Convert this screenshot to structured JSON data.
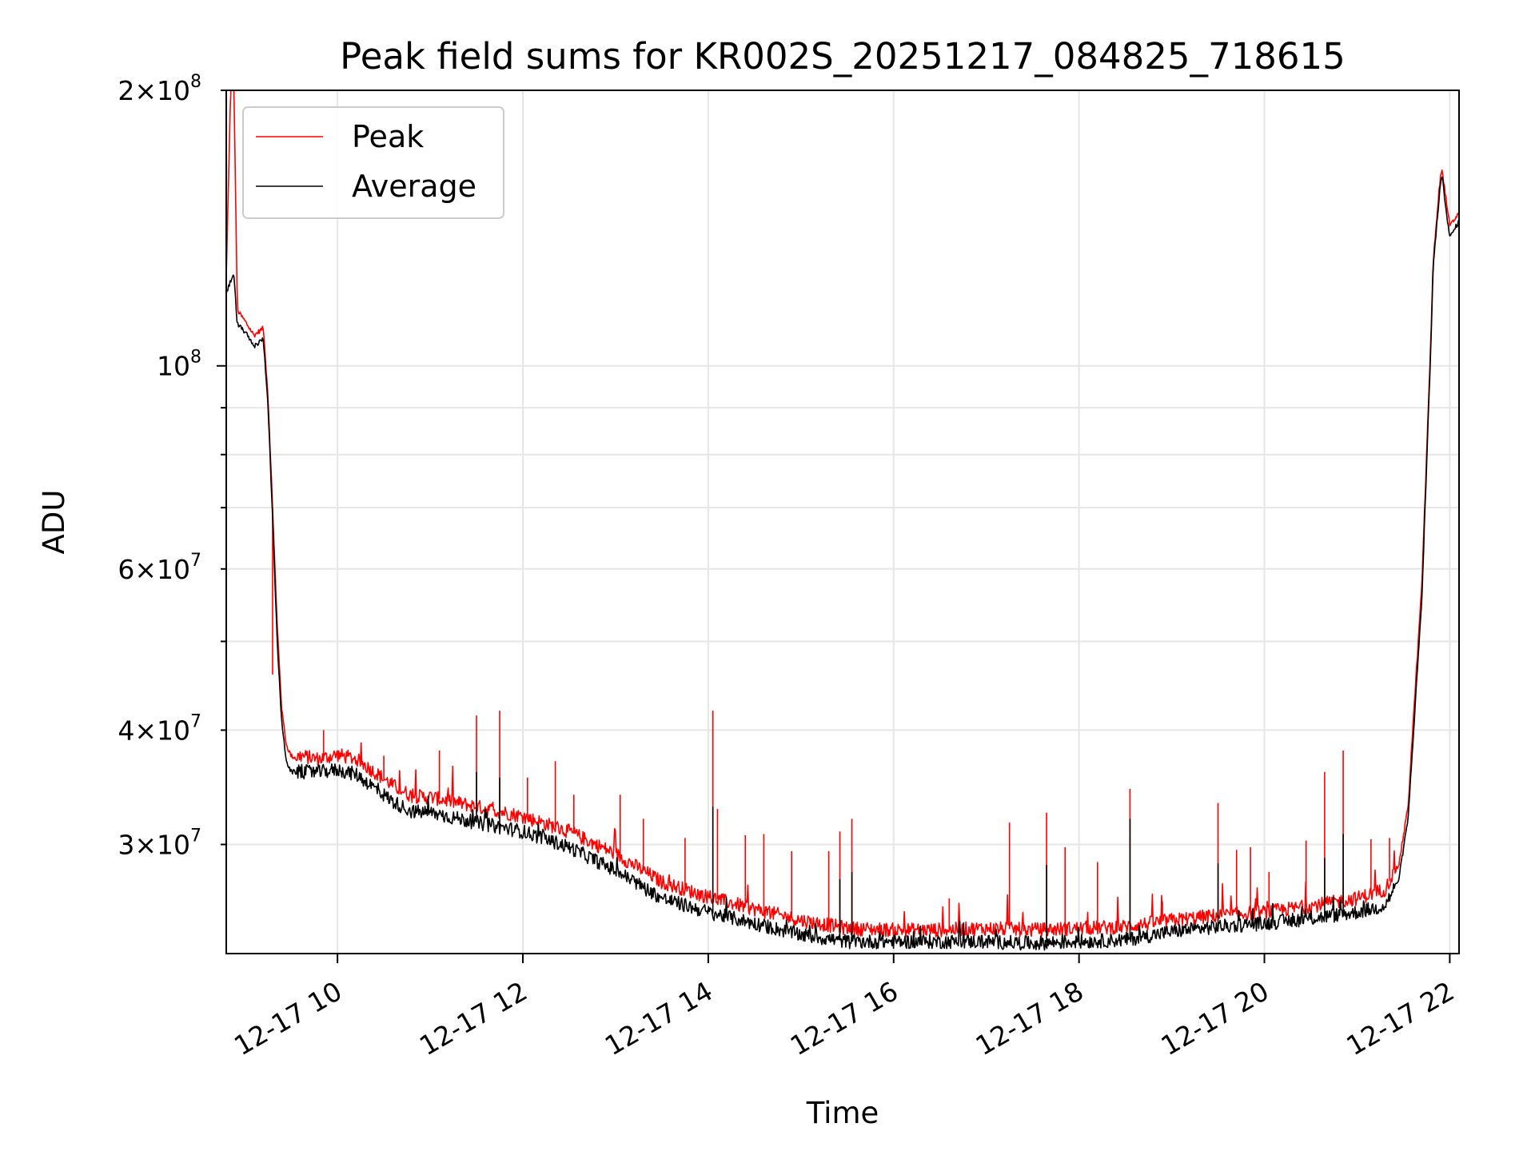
{
  "chart_data": {
    "type": "line",
    "title": "Peak field sums for KR002S_20251217_084825_718615",
    "xlabel": "Time",
    "ylabel": "ADU",
    "yscale": "log",
    "xlim": [
      8.8,
      22.1
    ],
    "ylim": [
      22800000,
      200000000
    ],
    "grid": true,
    "legend_position": "top-left",
    "x_unit": "hours since 2025-12-17 00:00",
    "x_ticks": [
      {
        "value": 10,
        "label": "12-17 10"
      },
      {
        "value": 12,
        "label": "12-17 12"
      },
      {
        "value": 14,
        "label": "12-17 14"
      },
      {
        "value": 16,
        "label": "12-17 16"
      },
      {
        "value": 18,
        "label": "12-17 18"
      },
      {
        "value": 20,
        "label": "12-17 20"
      },
      {
        "value": 22,
        "label": "12-17 22"
      }
    ],
    "y_ticks_major": [
      {
        "value": 100000000,
        "base": "10",
        "exp": "8"
      }
    ],
    "y_ticks_labeled_minor": [
      {
        "value": 200000000,
        "mant": "2",
        "exp": "8"
      },
      {
        "value": 60000000,
        "mant": "6",
        "exp": "7"
      },
      {
        "value": 40000000,
        "mant": "4",
        "exp": "7"
      },
      {
        "value": 30000000,
        "mant": "3",
        "exp": "7"
      }
    ],
    "y_ticks_minor_unlabeled": [
      50000000,
      70000000,
      80000000,
      90000000
    ],
    "series": [
      {
        "name": "Peak",
        "color": "#ff0000",
        "x": [
          8.8,
          8.85,
          8.88,
          8.92,
          9.0,
          9.1,
          9.2,
          9.25,
          9.3,
          9.35,
          9.4,
          9.45,
          9.5,
          9.55,
          9.6,
          9.8,
          10.0,
          10.2,
          10.4,
          10.6,
          10.8,
          11.0,
          11.5,
          12.0,
          12.5,
          13.0,
          13.5,
          14.0,
          14.5,
          15.0,
          15.5,
          16.0,
          16.5,
          17.0,
          17.5,
          18.0,
          18.5,
          19.0,
          19.5,
          20.0,
          20.5,
          21.0,
          21.3,
          21.45,
          21.55,
          21.6,
          21.7,
          21.75,
          21.8,
          21.82,
          21.9,
          21.92,
          22.0,
          22.1
        ],
        "y": [
          125000000,
          205000000,
          210000000,
          115000000,
          112000000,
          108000000,
          110000000,
          93000000,
          70000000,
          52000000,
          42000000,
          38500000,
          37500000,
          37300000,
          37500000,
          37200000,
          37600000,
          37200000,
          36000000,
          34800000,
          33900000,
          33800000,
          33000000,
          32200000,
          31000000,
          29300000,
          27300000,
          26300000,
          25500000,
          24800000,
          24300000,
          24200000,
          24200000,
          24300000,
          24200000,
          24300000,
          24400000,
          24800000,
          25100000,
          25300000,
          25700000,
          26200000,
          26800000,
          28500000,
          33000000,
          40000000,
          58000000,
          80000000,
          110000000,
          130000000,
          162000000,
          163000000,
          142000000,
          147000000
        ],
        "spikes": [
          {
            "x": 9.3,
            "y": 46000000
          },
          {
            "x": 9.85,
            "y": 40000000
          },
          {
            "x": 10.5,
            "y": 37500000
          },
          {
            "x": 11.1,
            "y": 38000000
          },
          {
            "x": 11.5,
            "y": 41500000
          },
          {
            "x": 11.75,
            "y": 42000000
          },
          {
            "x": 12.05,
            "y": 35500000
          },
          {
            "x": 12.35,
            "y": 37000000
          },
          {
            "x": 12.55,
            "y": 34000000
          },
          {
            "x": 13.05,
            "y": 34000000
          },
          {
            "x": 13.3,
            "y": 32000000
          },
          {
            "x": 13.75,
            "y": 30500000
          },
          {
            "x": 14.05,
            "y": 42000000
          },
          {
            "x": 14.1,
            "y": 32800000
          },
          {
            "x": 14.4,
            "y": 30700000
          },
          {
            "x": 14.6,
            "y": 30800000
          },
          {
            "x": 14.9,
            "y": 29500000
          },
          {
            "x": 15.3,
            "y": 29500000
          },
          {
            "x": 15.42,
            "y": 31000000
          },
          {
            "x": 15.55,
            "y": 32000000
          },
          {
            "x": 16.6,
            "y": 26200000
          },
          {
            "x": 17.25,
            "y": 31700000
          },
          {
            "x": 17.65,
            "y": 32500000
          },
          {
            "x": 17.85,
            "y": 29800000
          },
          {
            "x": 18.2,
            "y": 28700000
          },
          {
            "x": 18.55,
            "y": 34500000
          },
          {
            "x": 18.9,
            "y": 26000000
          },
          {
            "x": 19.5,
            "y": 33300000
          },
          {
            "x": 19.7,
            "y": 29600000
          },
          {
            "x": 19.85,
            "y": 29800000
          },
          {
            "x": 20.05,
            "y": 28000000
          },
          {
            "x": 20.45,
            "y": 30300000
          },
          {
            "x": 20.65,
            "y": 36000000
          },
          {
            "x": 20.85,
            "y": 38000000
          },
          {
            "x": 21.15,
            "y": 30400000
          },
          {
            "x": 21.35,
            "y": 30500000
          }
        ]
      },
      {
        "name": "Average",
        "color": "#000000",
        "x": [
          8.8,
          8.85,
          8.88,
          8.92,
          9.0,
          9.1,
          9.2,
          9.25,
          9.3,
          9.35,
          9.4,
          9.45,
          9.5,
          9.55,
          9.6,
          9.8,
          10.0,
          10.2,
          10.4,
          10.6,
          10.8,
          11.0,
          11.5,
          12.0,
          12.5,
          13.0,
          13.5,
          14.0,
          14.5,
          15.0,
          15.5,
          16.0,
          16.5,
          17.0,
          17.5,
          18.0,
          18.5,
          19.0,
          19.5,
          20.0,
          20.5,
          21.0,
          21.3,
          21.45,
          21.55,
          21.6,
          21.7,
          21.75,
          21.8,
          21.82,
          21.9,
          21.92,
          22.0,
          22.1
        ],
        "y": [
          120000000,
          124000000,
          126000000,
          111000000,
          109000000,
          105000000,
          107000000,
          91000000,
          68000000,
          50000000,
          40500000,
          37000000,
          36000000,
          36000000,
          36000000,
          36000000,
          36200000,
          35800000,
          34600000,
          33400000,
          32600000,
          32500000,
          31700000,
          31000000,
          29800000,
          28100000,
          26200000,
          25300000,
          24600000,
          23900000,
          23500000,
          23500000,
          23500000,
          23500000,
          23400000,
          23500000,
          23600000,
          24100000,
          24400000,
          24600000,
          24900000,
          25300000,
          25700000,
          27500000,
          32000000,
          38500000,
          56000000,
          78000000,
          108000000,
          128000000,
          159000000,
          160000000,
          138000000,
          144000000
        ],
        "spikes": [
          {
            "x": 11.5,
            "y": 36000000
          },
          {
            "x": 11.75,
            "y": 35500000
          },
          {
            "x": 14.05,
            "y": 33000000
          },
          {
            "x": 15.42,
            "y": 27500000
          },
          {
            "x": 15.55,
            "y": 28000000
          },
          {
            "x": 17.65,
            "y": 28500000
          },
          {
            "x": 18.55,
            "y": 32000000
          },
          {
            "x": 19.5,
            "y": 28600000
          },
          {
            "x": 20.65,
            "y": 29000000
          },
          {
            "x": 20.85,
            "y": 30800000
          }
        ]
      }
    ]
  }
}
